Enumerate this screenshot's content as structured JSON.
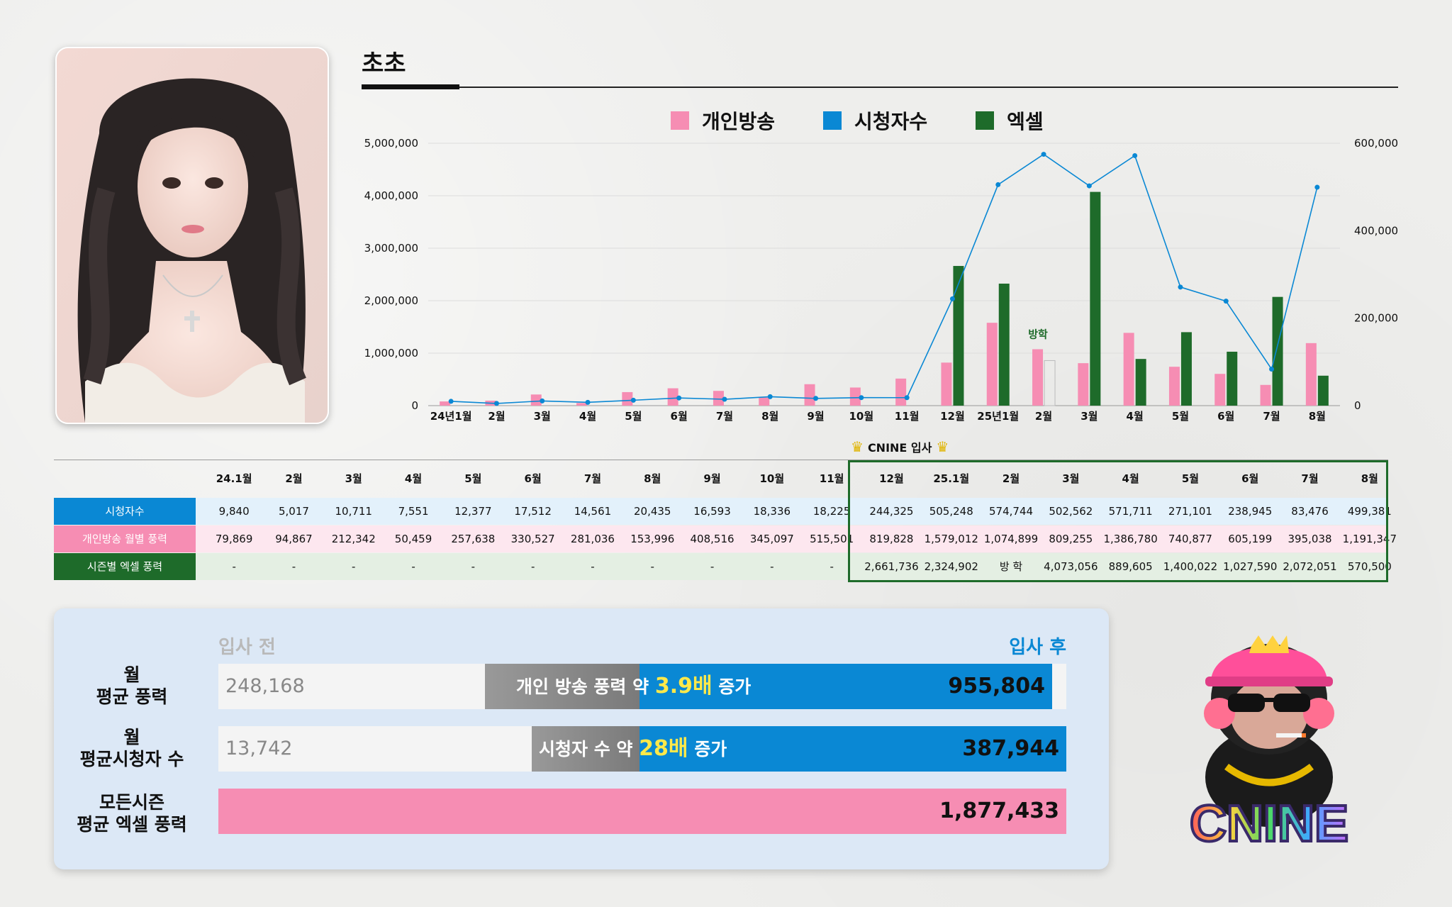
{
  "title": "초초",
  "legend": [
    {
      "label": "개인방송",
      "color": "#f68db3"
    },
    {
      "label": "시청자수",
      "color": "#0a88d4"
    },
    {
      "label": "엑셀",
      "color": "#1e6b2a"
    }
  ],
  "chart_data": {
    "type": "bar",
    "categories": [
      "24년1월",
      "2월",
      "3월",
      "4월",
      "5월",
      "6월",
      "7월",
      "8월",
      "9월",
      "10월",
      "11월",
      "12월",
      "25년1월",
      "2월",
      "3월",
      "4월",
      "5월",
      "6월",
      "7월",
      "8월"
    ],
    "left_axis": {
      "ticks": [
        "0",
        "1,000,000",
        "2,000,000",
        "3,000,000",
        "4,000,000",
        "5,000,000"
      ],
      "ylim": [
        0,
        5000000
      ]
    },
    "right_axis": {
      "ticks": [
        "0",
        "200,000",
        "400,000",
        "600,000"
      ],
      "ylim": [
        0,
        600000
      ]
    },
    "series": [
      {
        "name": "개인방송",
        "type": "bar",
        "axis": "left",
        "color": "#f68db3",
        "values": [
          79869,
          94867,
          212342,
          50459,
          257638,
          330527,
          281036,
          153996,
          408516,
          345097,
          515501,
          819828,
          1579012,
          1074899,
          809255,
          1386780,
          740877,
          605199,
          395038,
          1191347
        ]
      },
      {
        "name": "엑셀",
        "type": "bar",
        "axis": "left",
        "color": "#1e6b2a",
        "values": [
          null,
          null,
          null,
          null,
          null,
          null,
          null,
          null,
          null,
          null,
          null,
          2661736,
          2324902,
          null,
          4073056,
          889605,
          1400022,
          1027590,
          2072051,
          570500
        ]
      },
      {
        "name": "시청자수",
        "type": "line",
        "axis": "right",
        "color": "#0a88d4",
        "values": [
          9840,
          5017,
          10711,
          7551,
          12377,
          17512,
          14561,
          20435,
          16593,
          18336,
          18225,
          244325,
          505248,
          574744,
          502562,
          571711,
          271101,
          238945,
          83476,
          499381
        ]
      }
    ],
    "annotation": {
      "category": "2월",
      "text": "방학",
      "value_index": 13
    }
  },
  "cnine_join_label": "CNINE 입사",
  "table": {
    "columns": [
      "24.1월",
      "2월",
      "3월",
      "4월",
      "5월",
      "6월",
      "7월",
      "8월",
      "9월",
      "10월",
      "11월",
      "12월",
      "25.1월",
      "2월",
      "3월",
      "4월",
      "5월",
      "6월",
      "7월",
      "8월"
    ],
    "rows": [
      {
        "label": "시청자수",
        "values": [
          "9,840",
          "5,017",
          "10,711",
          "7,551",
          "12,377",
          "17,512",
          "14,561",
          "20,435",
          "16,593",
          "18,336",
          "18,225",
          "244,325",
          "505,248",
          "574,744",
          "502,562",
          "571,711",
          "271,101",
          "238,945",
          "83,476",
          "499,381"
        ]
      },
      {
        "label": "개인방송 월별 풍력",
        "values": [
          "79,869",
          "94,867",
          "212,342",
          "50,459",
          "257,638",
          "330,527",
          "281,036",
          "153,996",
          "408,516",
          "345,097",
          "515,501",
          "819,828",
          "1,579,012",
          "1,074,899",
          "809,255",
          "1,386,780",
          "740,877",
          "605,199",
          "395,038",
          "1,191,347"
        ]
      },
      {
        "label": "시즌별 엑셀 풍력",
        "values": [
          "-",
          "-",
          "-",
          "-",
          "-",
          "-",
          "-",
          "-",
          "-",
          "-",
          "-",
          "2,661,736",
          "2,324,902",
          "방 학",
          "4,073,056",
          "889,605",
          "1,400,022",
          "1,027,590",
          "2,072,051",
          "570,500"
        ]
      }
    ]
  },
  "summary": {
    "before_label": "입사 전",
    "after_label": "입사 후",
    "rows": [
      {
        "label_line1": "월",
        "label_line2": "평균 풍력",
        "before": "248,168",
        "after": "955,804",
        "mid_prefix": "개인 방송 풍력 약 ",
        "mid_big": "3.9배",
        "mid_suffix": " 증가"
      },
      {
        "label_line1": "월",
        "label_line2": "평균시청자 수",
        "before": "13,742",
        "after": "387,944",
        "mid_prefix": "시청자 수 약 ",
        "mid_big": "28배",
        "mid_suffix": " 증가"
      },
      {
        "label_line1": "모든시즌",
        "label_line2": "평균 엑셀 풍력",
        "value": "1,877,433"
      }
    ]
  },
  "mascot_text": "CNINE"
}
